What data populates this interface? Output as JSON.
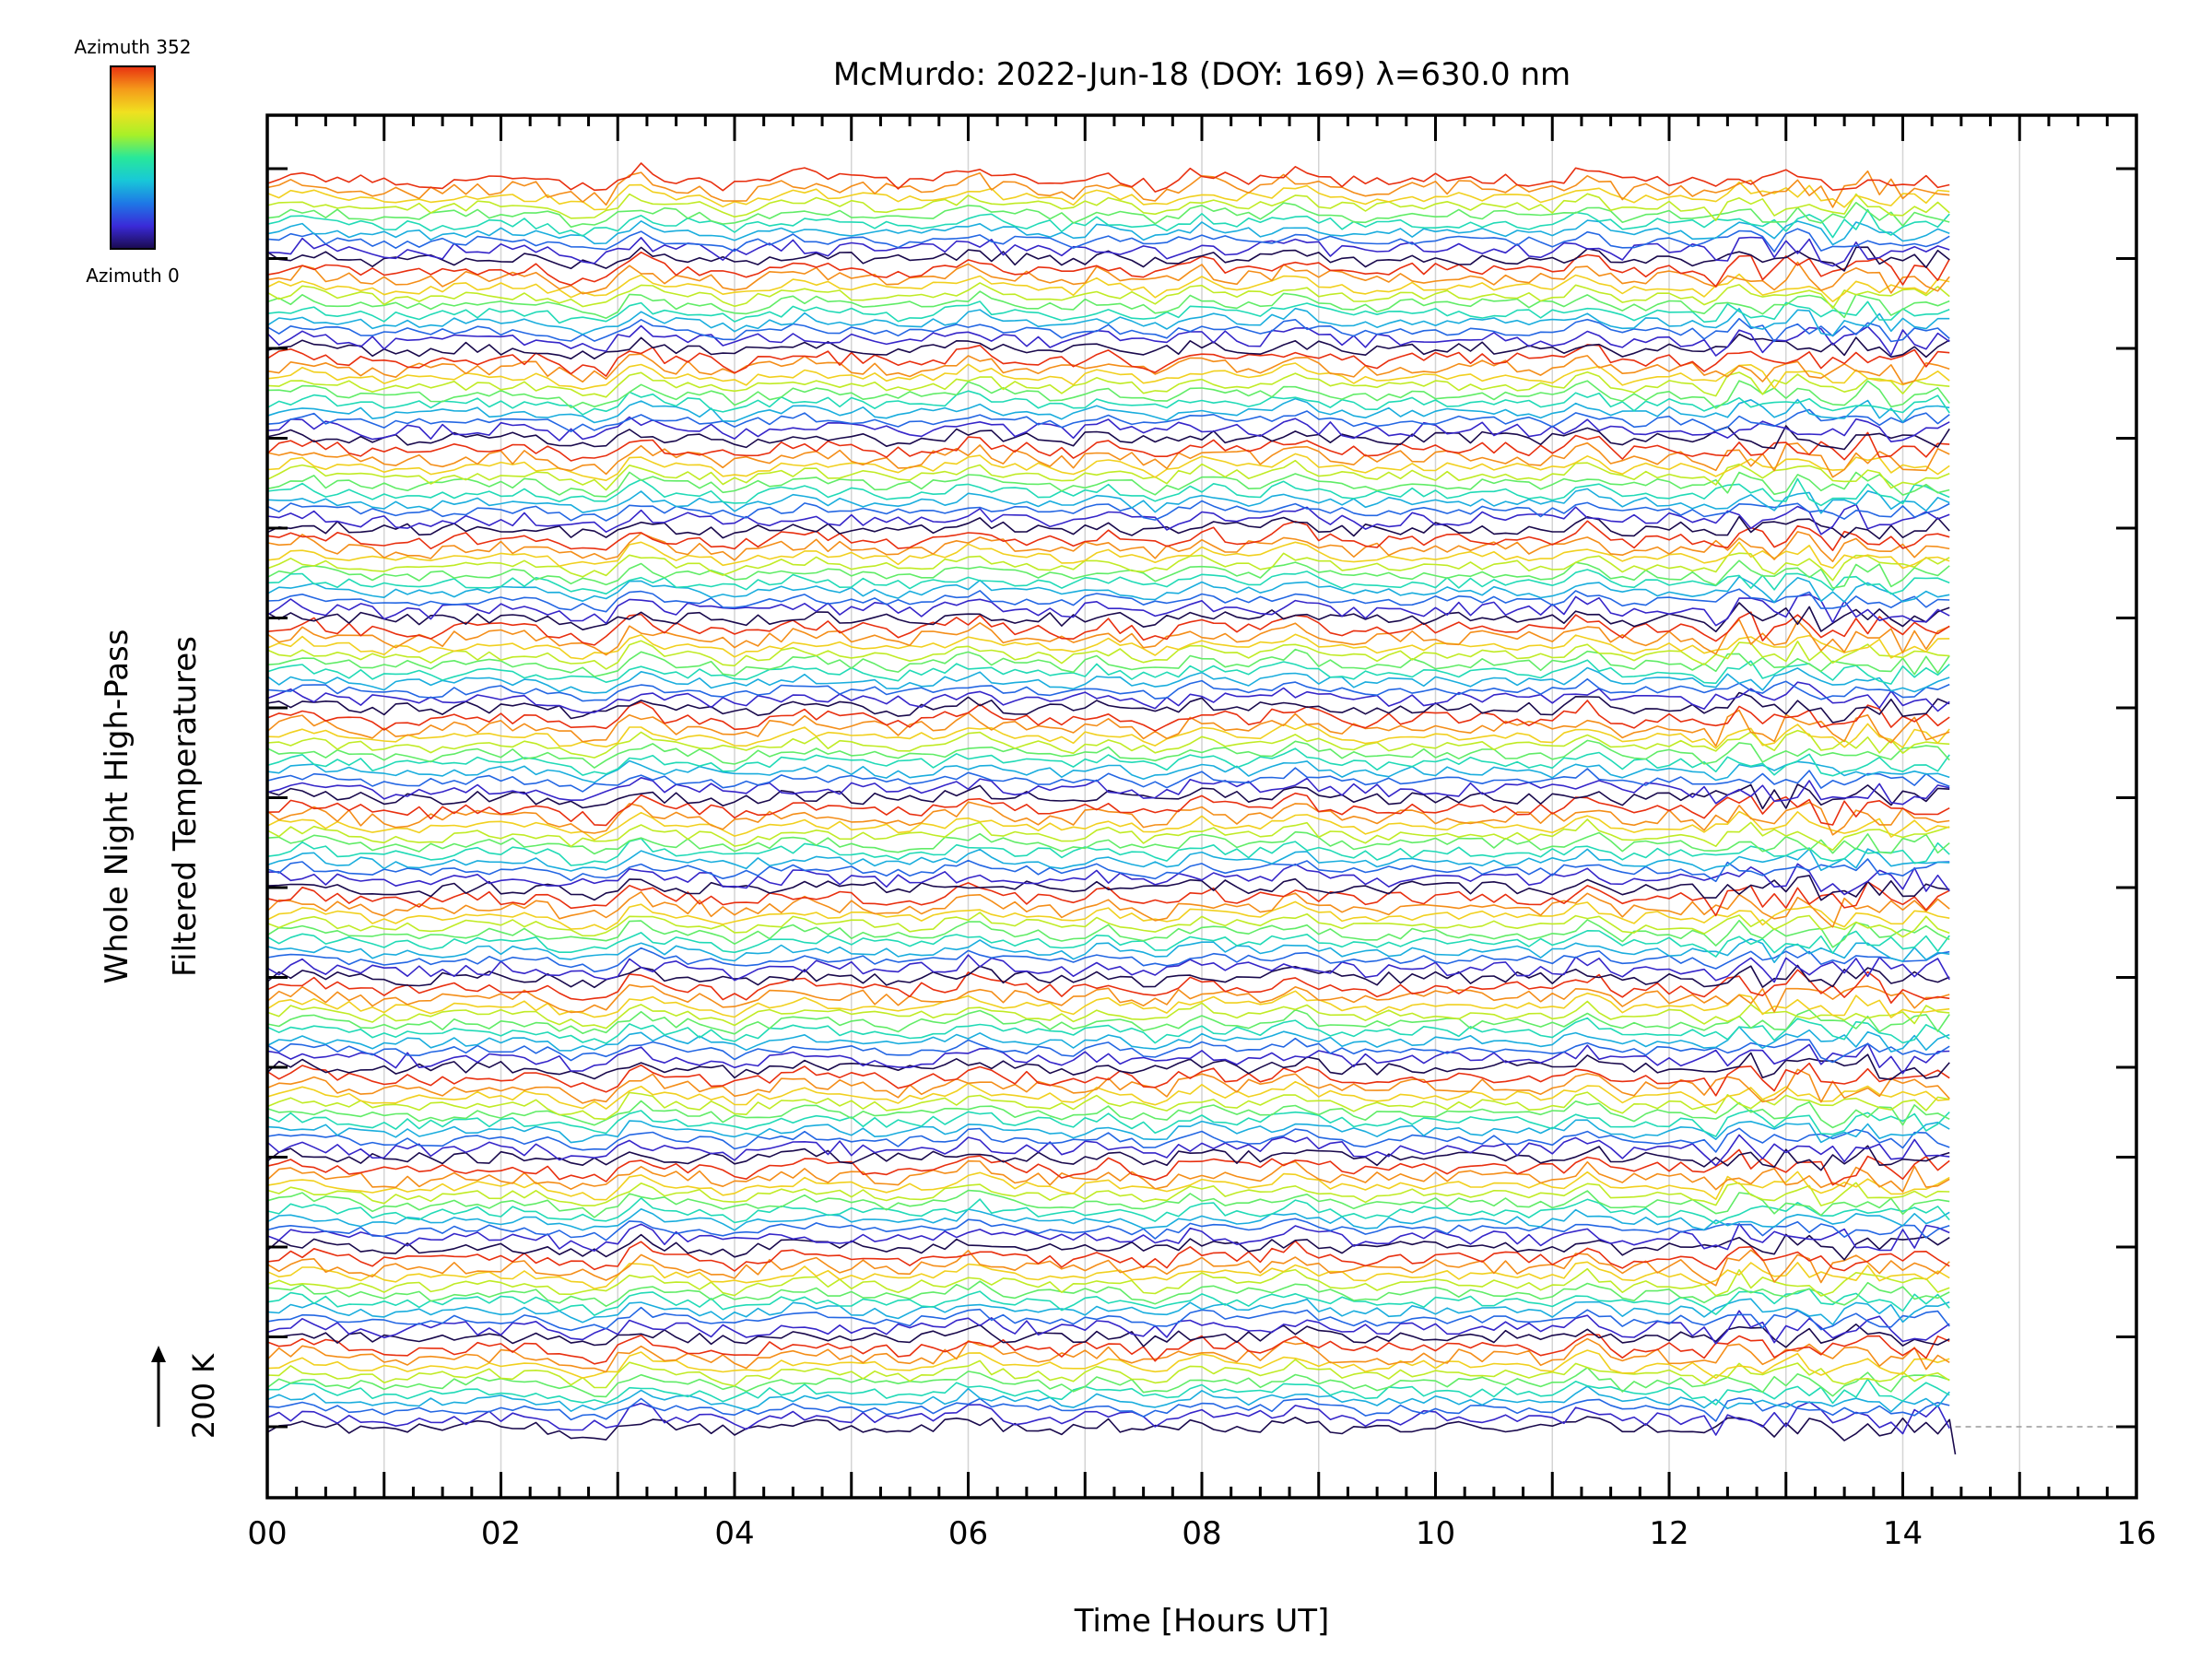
{
  "chart_data": {
    "type": "line",
    "title": "McMurdo: 2022-Jun-18 (DOY: 169) λ=630.0 nm",
    "xlabel": "Time [Hours UT]",
    "ylabel_line1": "Whole Night High-Pass",
    "ylabel_line2": "Filtered Temperatures",
    "scale_label": "200 K",
    "xlim": [
      0,
      16
    ],
    "x_ticks": [
      "00",
      "02",
      "04",
      "06",
      "08",
      "10",
      "12",
      "14",
      "16"
    ],
    "x_tick_values": [
      0,
      2,
      4,
      6,
      8,
      10,
      12,
      14,
      16
    ],
    "x_grid_hours": [
      1,
      2,
      3,
      4,
      5,
      6,
      7,
      8,
      9,
      10,
      11,
      12,
      13,
      14,
      15
    ],
    "time_range_hours": [
      0,
      14.45
    ],
    "colorbar": {
      "top_label": "Azimuth 352",
      "bottom_label": "Azimuth 0",
      "colormap": "rainbow",
      "colors": [
        "#1a0a4d",
        "#3a2ad8",
        "#1e78e6",
        "#18c8d8",
        "#28e89a",
        "#a8f028",
        "#f0e020",
        "#f59a1a",
        "#e83010"
      ]
    },
    "line_count": 134,
    "stack_count": 14
  }
}
